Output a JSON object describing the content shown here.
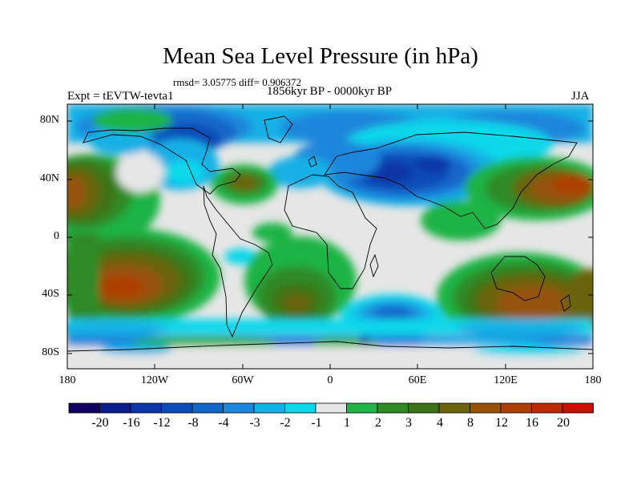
{
  "figure": {
    "title": "Mean Sea Level Pressure (in hPa)",
    "stats": "rmsd= 3.05775 diff= 0.906372",
    "period": "1856kyr BP - 0000kyr BP",
    "experiment": "Expt = tEVTW-tevta1",
    "season": "JJA"
  },
  "axes": {
    "y_ticks": [
      "80N",
      "40N",
      "0",
      "40S",
      "80S"
    ],
    "x_ticks": [
      "180",
      "120W",
      "60W",
      "0",
      "60E",
      "120E",
      "180"
    ]
  },
  "colorbar": {
    "labels": [
      "-20",
      "-16",
      "-12",
      "-8",
      "-4",
      "-3",
      "-2",
      "-1",
      "1",
      "2",
      "3",
      "4",
      "8",
      "12",
      "16",
      "20"
    ],
    "colors": [
      "#120060",
      "#0c1d8c",
      "#0a36a8",
      "#0c4cb8",
      "#1266c8",
      "#1a86dc",
      "#14b0e6",
      "#0ad8ea",
      "#e6e6e6",
      "#1fb445",
      "#2e8a25",
      "#3c7318",
      "#6b640c",
      "#965308",
      "#ad3f05",
      "#bb2a02",
      "#cc0e00"
    ]
  }
}
